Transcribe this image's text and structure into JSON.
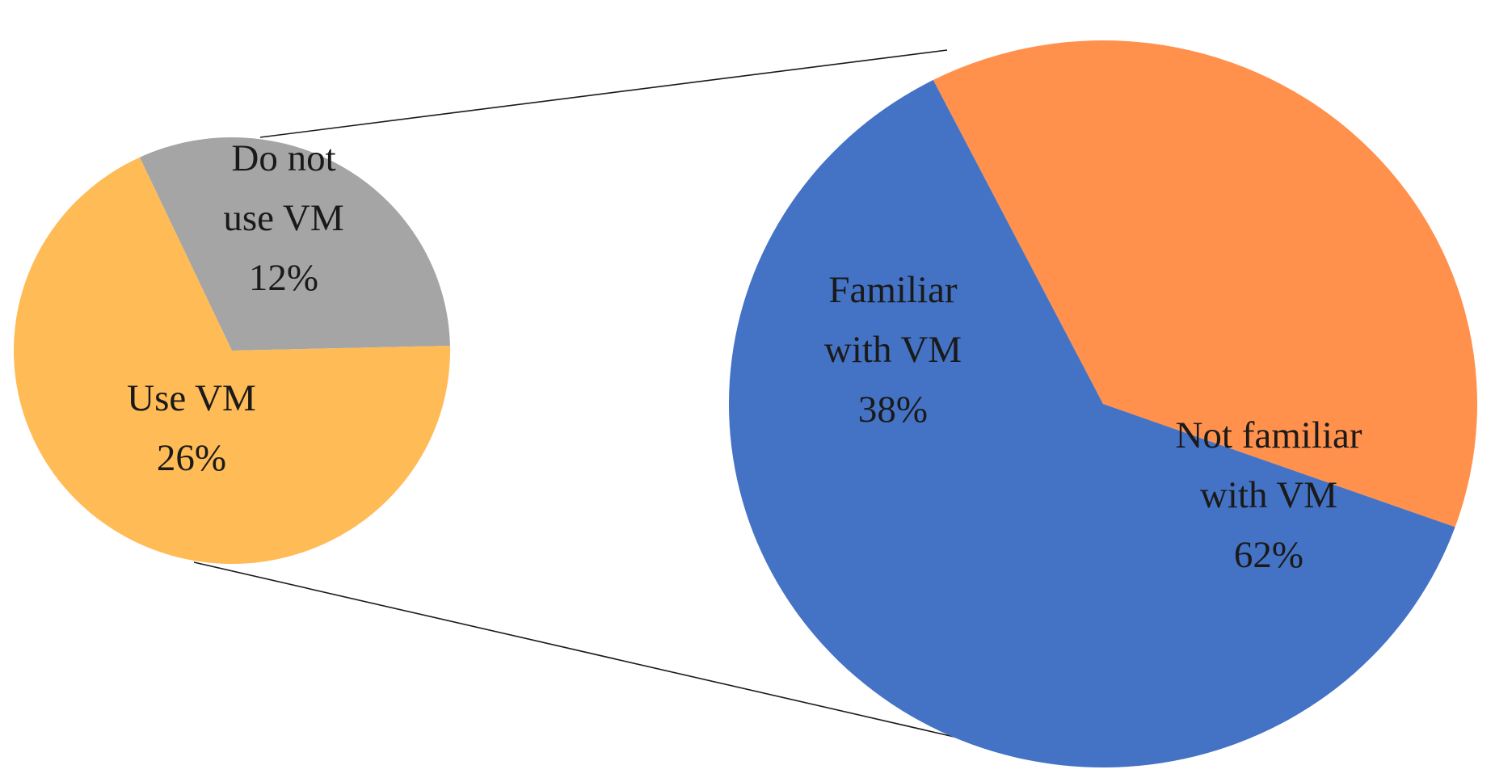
{
  "chart_data": [
    {
      "type": "pie",
      "slices": [
        {
          "label": [
            "Do not",
            "use VM",
            "12%"
          ],
          "value": 12,
          "color": "#A5A5A5"
        },
        {
          "label": [
            "Use VM",
            "26%"
          ],
          "value": 26,
          "color": "#FFBB55"
        }
      ]
    },
    {
      "type": "pie",
      "slices": [
        {
          "label": [
            "Familiar",
            "with VM",
            "38%"
          ],
          "value": 38,
          "color": "#FF914D"
        },
        {
          "label": [
            "Not familiar",
            "with VM",
            "62%"
          ],
          "value": 62,
          "color": "#4472C4"
        }
      ]
    }
  ]
}
